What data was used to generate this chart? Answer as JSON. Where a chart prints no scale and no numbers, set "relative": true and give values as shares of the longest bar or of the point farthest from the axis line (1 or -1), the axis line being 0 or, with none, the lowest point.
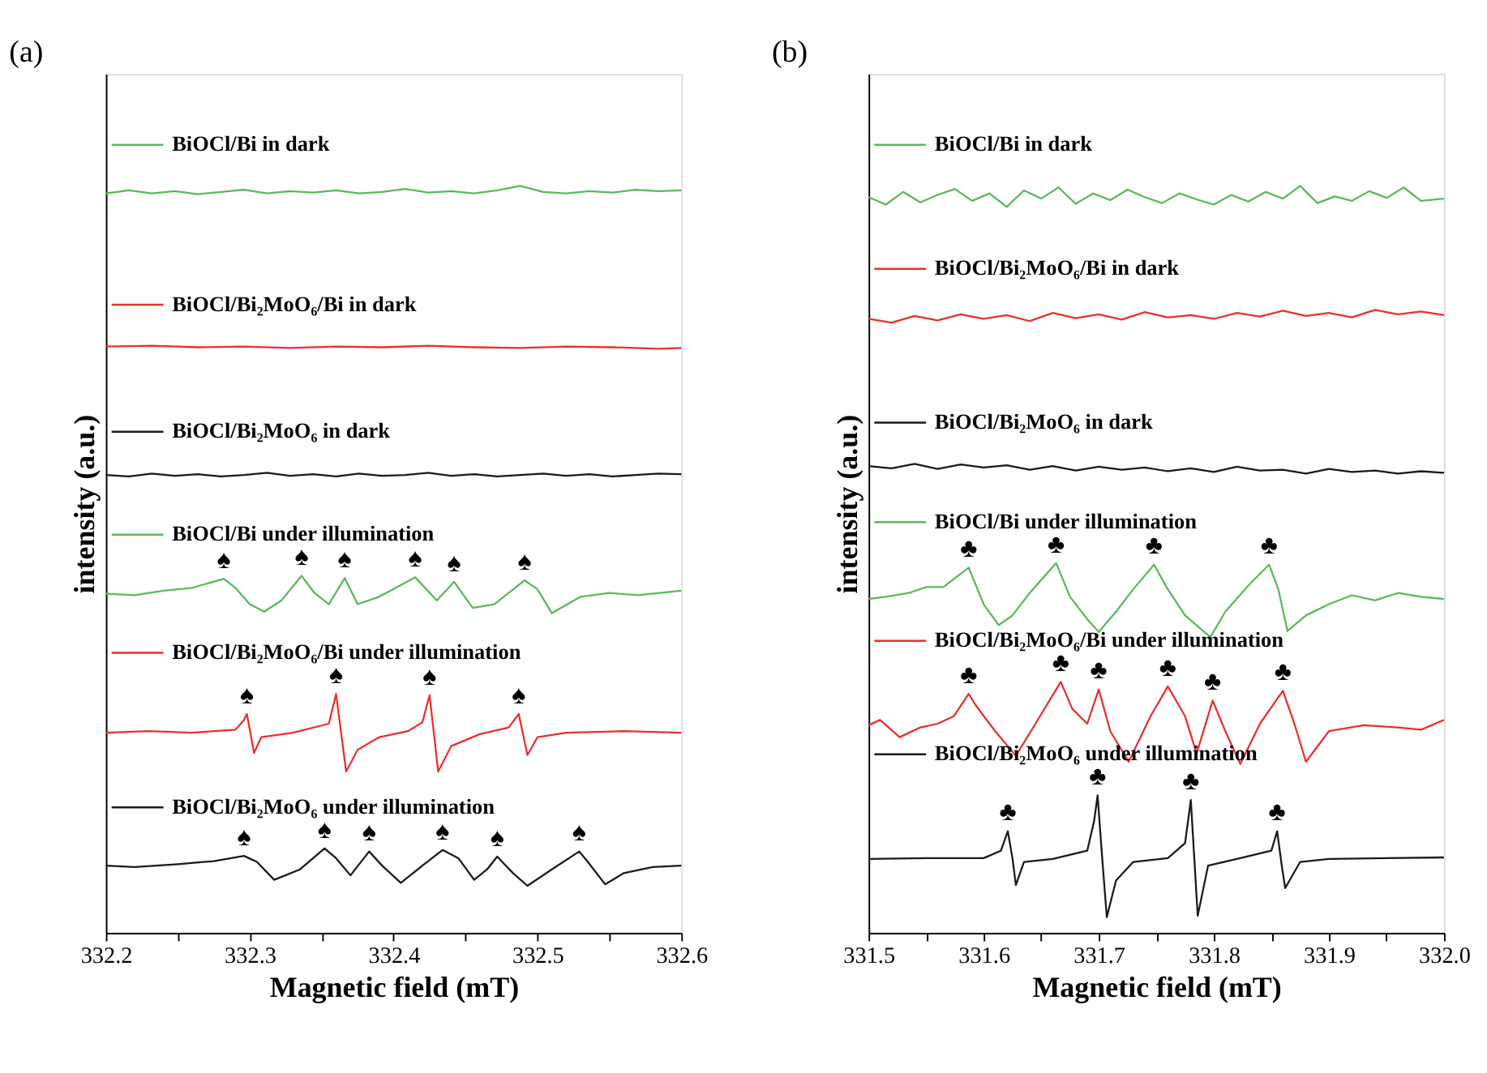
{
  "chart_data": [
    {
      "type": "line",
      "relative": true,
      "title": "(a)",
      "xlabel": "Magnetic field (mT)",
      "ylabel": "intensity (a.u.)",
      "xlim": [
        332.2,
        332.6
      ],
      "xticks": [
        332.2,
        {
          "value": 332.25,
          "label": null
        },
        332.3,
        {
          "value": 332.35,
          "label": null
        },
        332.4,
        {
          "value": 332.45,
          "label": null
        },
        332.5,
        {
          "value": 332.55,
          "label": null
        },
        332.6
      ],
      "series": [
        {
          "name": "BiOCl/Bi in dark",
          "color": "#5cb85c",
          "x": [
            332.2,
            332.216,
            332.232,
            332.248,
            332.264,
            332.28,
            332.296,
            332.312,
            332.328,
            332.344,
            332.36,
            332.376,
            332.392,
            332.408,
            332.424,
            332.44,
            332.456,
            332.472,
            332.488,
            332.504,
            332.52,
            332.536,
            332.552,
            332.568,
            332.584,
            332.6
          ],
          "values": [
            0.99,
            0.994,
            0.99,
            0.993,
            0.989,
            0.992,
            0.995,
            0.99,
            0.993,
            0.991,
            0.994,
            0.99,
            0.992,
            0.996,
            0.991,
            0.993,
            0.99,
            0.994,
            1.0,
            0.992,
            0.99,
            0.993,
            0.991,
            0.995,
            0.993,
            0.994
          ]
        },
        {
          "name": "BiOCl/Bi₂MoO₆/Bi in dark",
          "color": "#e8312f",
          "x": [
            332.2,
            332.232,
            332.264,
            332.296,
            332.328,
            332.36,
            332.392,
            332.424,
            332.456,
            332.488,
            332.52,
            332.552,
            332.584,
            332.6
          ],
          "values": [
            0.785,
            0.786,
            0.784,
            0.785,
            0.783,
            0.785,
            0.784,
            0.786,
            0.784,
            0.783,
            0.785,
            0.784,
            0.782,
            0.783
          ]
        },
        {
          "name": "BiOCl/Bi₂MoO₆ in dark",
          "color": "#1a1a1a",
          "x": [
            332.2,
            332.216,
            332.232,
            332.248,
            332.264,
            332.28,
            332.296,
            332.312,
            332.328,
            332.344,
            332.36,
            332.376,
            332.392,
            332.408,
            332.424,
            332.44,
            332.456,
            332.472,
            332.488,
            332.504,
            332.52,
            332.536,
            332.552,
            332.568,
            332.584,
            332.6
          ],
          "values": [
            0.613,
            0.611,
            0.615,
            0.612,
            0.614,
            0.611,
            0.613,
            0.616,
            0.612,
            0.614,
            0.611,
            0.615,
            0.612,
            0.613,
            0.616,
            0.612,
            0.614,
            0.611,
            0.613,
            0.615,
            0.612,
            0.614,
            0.611,
            0.613,
            0.615,
            0.614
          ]
        },
        {
          "name": "BiOCl/Bi under illumination",
          "color": "#5cb85c",
          "x": [
            332.2,
            332.22,
            332.24,
            332.26,
            332.282,
            332.29,
            332.3,
            332.31,
            332.322,
            332.336,
            332.345,
            332.355,
            332.366,
            332.375,
            332.39,
            332.415,
            332.43,
            332.442,
            332.455,
            332.47,
            332.491,
            332.5,
            332.51,
            332.53,
            332.55,
            332.57,
            332.6
          ],
          "values": [
            0.454,
            0.452,
            0.458,
            0.462,
            0.474,
            0.462,
            0.44,
            0.43,
            0.445,
            0.478,
            0.455,
            0.44,
            0.475,
            0.44,
            0.45,
            0.476,
            0.445,
            0.47,
            0.435,
            0.44,
            0.472,
            0.46,
            0.428,
            0.45,
            0.455,
            0.452,
            0.458
          ]
        },
        {
          "name": "BiOCl/Bi₂MoO₆/Bi under illumination",
          "color": "#e8312f",
          "x": [
            332.2,
            332.23,
            332.26,
            332.29,
            332.296,
            332.298,
            332.303,
            332.308,
            332.33,
            332.355,
            332.36,
            332.367,
            332.375,
            332.39,
            332.41,
            332.42,
            332.425,
            332.431,
            332.44,
            332.46,
            332.48,
            332.487,
            332.493,
            332.5,
            332.52,
            332.56,
            332.6
          ],
          "values": [
            0.268,
            0.27,
            0.268,
            0.272,
            0.285,
            0.293,
            0.241,
            0.262,
            0.268,
            0.28,
            0.32,
            0.216,
            0.245,
            0.262,
            0.27,
            0.282,
            0.318,
            0.216,
            0.25,
            0.266,
            0.275,
            0.293,
            0.238,
            0.262,
            0.268,
            0.27,
            0.268
          ]
        },
        {
          "name": "BiOCl/Bi₂MoO₆ under illumination",
          "color": "#1a1a1a",
          "x": [
            332.2,
            332.22,
            332.25,
            332.275,
            332.296,
            332.305,
            332.317,
            332.335,
            332.352,
            332.36,
            332.37,
            332.383,
            332.392,
            332.405,
            332.42,
            332.434,
            332.445,
            332.456,
            332.465,
            332.472,
            332.483,
            332.493,
            332.51,
            332.529,
            332.535,
            332.547,
            332.56,
            332.58,
            332.6
          ],
          "values": [
            0.09,
            0.088,
            0.092,
            0.096,
            0.103,
            0.095,
            0.071,
            0.085,
            0.113,
            0.1,
            0.077,
            0.109,
            0.09,
            0.067,
            0.09,
            0.111,
            0.1,
            0.071,
            0.085,
            0.102,
            0.08,
            0.063,
            0.085,
            0.109,
            0.095,
            0.065,
            0.08,
            0.088,
            0.09
          ]
        }
      ],
      "annotations": [
        {
          "text": "♠",
          "x": 332.282,
          "y": 0.474
        },
        {
          "text": "♠",
          "x": 332.336,
          "y": 0.478
        },
        {
          "text": "♠",
          "x": 332.366,
          "y": 0.475
        },
        {
          "text": "♠",
          "x": 332.415,
          "y": 0.476
        },
        {
          "text": "♠",
          "x": 332.442,
          "y": 0.47
        },
        {
          "text": "♠",
          "x": 332.491,
          "y": 0.472
        },
        {
          "text": "♠",
          "x": 332.298,
          "y": 0.293
        },
        {
          "text": "♠",
          "x": 332.36,
          "y": 0.32
        },
        {
          "text": "♠",
          "x": 332.425,
          "y": 0.318
        },
        {
          "text": "♠",
          "x": 332.487,
          "y": 0.293
        },
        {
          "text": "♠",
          "x": 332.296,
          "y": 0.103
        },
        {
          "text": "♠",
          "x": 332.352,
          "y": 0.113
        },
        {
          "text": "♠",
          "x": 332.383,
          "y": 0.109
        },
        {
          "text": "♠",
          "x": 332.434,
          "y": 0.111
        },
        {
          "text": "♠",
          "x": 332.472,
          "y": 0.102
        },
        {
          "text": "♠",
          "x": 332.529,
          "y": 0.109
        }
      ],
      "legend": "top left"
    },
    {
      "type": "line",
      "relative": true,
      "title": "(b)",
      "xlabel": "Magnetic field (mT)",
      "ylabel": "intensity (a.u.)",
      "xlim": [
        331.5,
        332.0
      ],
      "xticks": [
        331.5,
        {
          "value": 331.55,
          "label": null
        },
        331.6,
        {
          "value": 331.65,
          "label": null
        },
        331.7,
        {
          "value": 331.75,
          "label": null
        },
        331.8,
        {
          "value": 331.85,
          "label": null
        },
        331.9,
        {
          "value": 331.95,
          "label": null
        },
        {
          "value": 332.0,
          "label": "332.0"
        }
      ],
      "series": [
        {
          "name": "BiOCl/Bi in dark",
          "color": "#5cb85c",
          "x": [
            331.5,
            331.515,
            331.53,
            331.545,
            331.56,
            331.575,
            331.59,
            331.605,
            331.62,
            331.635,
            331.65,
            331.665,
            331.68,
            331.695,
            331.71,
            331.725,
            331.74,
            331.755,
            331.77,
            331.785,
            331.8,
            331.815,
            331.83,
            331.845,
            331.86,
            331.875,
            331.89,
            331.905,
            331.92,
            331.935,
            331.95,
            331.965,
            331.98,
            332.0
          ],
          "values": [
            0.985,
            0.975,
            0.992,
            0.978,
            0.988,
            0.996,
            0.98,
            0.99,
            0.972,
            0.994,
            0.983,
            0.998,
            0.976,
            0.99,
            0.981,
            0.995,
            0.985,
            0.977,
            0.99,
            0.982,
            0.975,
            0.988,
            0.979,
            0.992,
            0.983,
            1.0,
            0.977,
            0.986,
            0.98,
            0.993,
            0.984,
            0.998,
            0.98,
            0.983
          ]
        },
        {
          "name": "BiOCl/Bi₂MoO₆/Bi in dark",
          "color": "#e8312f",
          "x": [
            331.5,
            331.52,
            331.54,
            331.56,
            331.58,
            331.6,
            331.62,
            331.64,
            331.66,
            331.68,
            331.7,
            331.72,
            331.74,
            331.76,
            331.78,
            331.8,
            331.82,
            331.84,
            331.86,
            331.88,
            331.9,
            331.92,
            331.94,
            331.96,
            331.98,
            332.0
          ],
          "values": [
            0.822,
            0.817,
            0.826,
            0.82,
            0.828,
            0.822,
            0.827,
            0.819,
            0.83,
            0.823,
            0.828,
            0.821,
            0.831,
            0.824,
            0.827,
            0.822,
            0.83,
            0.825,
            0.833,
            0.826,
            0.83,
            0.824,
            0.834,
            0.828,
            0.832,
            0.827
          ]
        },
        {
          "name": "BiOCl/Bi₂MoO₆ in dark",
          "color": "#1a1a1a",
          "x": [
            331.5,
            331.52,
            331.54,
            331.56,
            331.58,
            331.6,
            331.62,
            331.64,
            331.66,
            331.68,
            331.7,
            331.72,
            331.74,
            331.76,
            331.78,
            331.8,
            331.82,
            331.84,
            331.86,
            331.88,
            331.9,
            331.92,
            331.94,
            331.96,
            331.98,
            332.0
          ],
          "values": [
            0.625,
            0.622,
            0.628,
            0.621,
            0.627,
            0.623,
            0.626,
            0.62,
            0.625,
            0.619,
            0.624,
            0.62,
            0.623,
            0.618,
            0.622,
            0.617,
            0.624,
            0.619,
            0.62,
            0.615,
            0.621,
            0.617,
            0.619,
            0.615,
            0.618,
            0.616
          ]
        },
        {
          "name": "BiOCl/Bi under illumination",
          "color": "#5cb85c",
          "x": [
            331.5,
            331.515,
            331.535,
            331.55,
            331.565,
            331.587,
            331.6,
            331.613,
            331.625,
            331.64,
            331.663,
            331.675,
            331.69,
            331.7,
            331.715,
            331.73,
            331.748,
            331.76,
            331.775,
            331.797,
            331.81,
            331.83,
            331.848,
            331.856,
            331.864,
            331.88,
            331.9,
            331.92,
            331.94,
            331.96,
            331.98,
            332.0
          ],
          "values": [
            0.447,
            0.45,
            0.455,
            0.463,
            0.463,
            0.489,
            0.44,
            0.412,
            0.425,
            0.455,
            0.495,
            0.45,
            0.42,
            0.403,
            0.43,
            0.46,
            0.493,
            0.46,
            0.425,
            0.396,
            0.43,
            0.465,
            0.493,
            0.46,
            0.404,
            0.425,
            0.44,
            0.452,
            0.445,
            0.455,
            0.45,
            0.447
          ]
        },
        {
          "name": "BiOCl/Bi₂MoO₆/Bi under illumination",
          "color": "#e8312f",
          "x": [
            331.5,
            331.51,
            331.527,
            331.545,
            331.56,
            331.574,
            331.587,
            331.593,
            331.61,
            331.628,
            331.645,
            331.667,
            331.677,
            331.69,
            331.7,
            331.71,
            331.726,
            331.745,
            331.76,
            331.775,
            331.785,
            331.799,
            331.81,
            331.823,
            331.84,
            331.86,
            331.87,
            331.88,
            331.9,
            331.93,
            331.96,
            331.98,
            332.0
          ],
          "values": [
            0.278,
            0.285,
            0.262,
            0.275,
            0.28,
            0.29,
            0.32,
            0.305,
            0.27,
            0.237,
            0.28,
            0.336,
            0.3,
            0.28,
            0.326,
            0.27,
            0.229,
            0.29,
            0.33,
            0.29,
            0.24,
            0.311,
            0.27,
            0.226,
            0.28,
            0.324,
            0.28,
            0.229,
            0.27,
            0.278,
            0.275,
            0.272,
            0.285
          ]
        },
        {
          "name": "BiOCl/Bi₂MoO₆ under illumination",
          "color": "#1a1a1a",
          "x": [
            331.5,
            331.55,
            331.6,
            331.615,
            331.621,
            331.625,
            331.628,
            331.635,
            331.66,
            331.69,
            331.696,
            331.699,
            331.703,
            331.707,
            331.715,
            331.73,
            331.76,
            331.775,
            331.78,
            331.783,
            331.786,
            331.795,
            331.82,
            331.85,
            331.855,
            331.859,
            331.862,
            331.875,
            331.9,
            331.95,
            332.0
          ],
          "values": [
            0.099,
            0.1,
            0.1,
            0.11,
            0.136,
            0.1,
            0.064,
            0.095,
            0.099,
            0.11,
            0.15,
            0.184,
            0.1,
            0.021,
            0.07,
            0.095,
            0.1,
            0.12,
            0.178,
            0.1,
            0.023,
            0.09,
            0.099,
            0.11,
            0.136,
            0.09,
            0.06,
            0.095,
            0.099,
            0.1,
            0.101
          ]
        }
      ],
      "annotations": [
        {
          "text": "♣",
          "x": 331.587,
          "y": 0.489
        },
        {
          "text": "♣",
          "x": 331.663,
          "y": 0.495
        },
        {
          "text": "♣",
          "x": 331.748,
          "y": 0.493
        },
        {
          "text": "♣",
          "x": 331.848,
          "y": 0.493
        },
        {
          "text": "♣",
          "x": 331.587,
          "y": 0.32
        },
        {
          "text": "♣",
          "x": 331.667,
          "y": 0.336
        },
        {
          "text": "♣",
          "x": 331.7,
          "y": 0.326
        },
        {
          "text": "♣",
          "x": 331.76,
          "y": 0.33
        },
        {
          "text": "♣",
          "x": 331.799,
          "y": 0.311
        },
        {
          "text": "♣",
          "x": 331.86,
          "y": 0.324
        },
        {
          "text": "♣",
          "x": 331.621,
          "y": 0.136
        },
        {
          "text": "♣",
          "x": 331.699,
          "y": 0.184
        },
        {
          "text": "♣",
          "x": 331.78,
          "y": 0.178
        },
        {
          "text": "♣",
          "x": 331.855,
          "y": 0.136
        }
      ],
      "legend": "top left"
    }
  ]
}
